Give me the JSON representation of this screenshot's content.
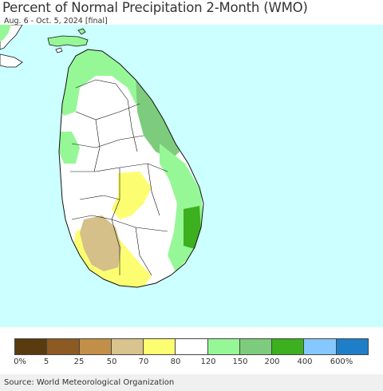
{
  "title": "Percent of Normal Precipitation 2-Month (WMO)",
  "subtitle": "Aug. 6 - Oct. 5, 2024 [final]",
  "map": {
    "ocean_color": "#ccffff",
    "land_color": "#ffffff",
    "boundary_color": "#111111",
    "regions": [
      {
        "category": "150-200",
        "color": "#7dcc7d"
      },
      {
        "category": "120-150",
        "color": "#96f796"
      },
      {
        "category": "200-400",
        "color": "#3cb01e"
      },
      {
        "category": "70-80",
        "color": "#fdfd72"
      },
      {
        "category": "50-70",
        "color": "#d4c088"
      }
    ]
  },
  "legend": {
    "colors": [
      "#5a3b10",
      "#8c5a22",
      "#c28f48",
      "#d8c48c",
      "#fdfd72",
      "#ffffff",
      "#96f796",
      "#7dcc7d",
      "#3cb01e",
      "#84c8ff",
      "#1e7ec8"
    ],
    "labels": [
      "0%",
      "5",
      "25",
      "50",
      "70",
      "80",
      "120",
      "150",
      "200",
      "400",
      "600%"
    ]
  },
  "source": "Source: World Meteorological Organization"
}
